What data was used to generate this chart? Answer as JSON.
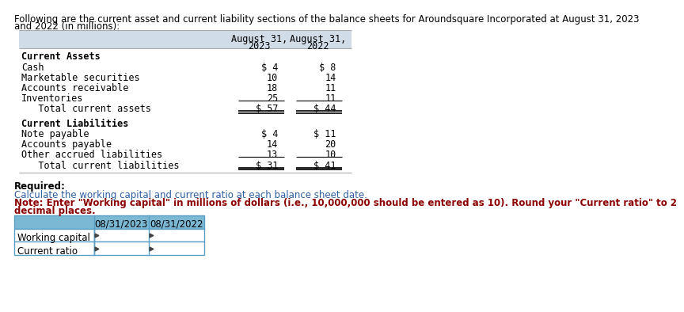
{
  "header_line1": "Following are the current asset and current liability sections of the balance sheets for Aroundsquare Incorporated at August 31, 2023",
  "header_line2": "and 2022 (in millions):",
  "col_headers": [
    "August 31,",
    "2023",
    "August 31,",
    "2022"
  ],
  "sections": [
    {
      "title": "Current Assets",
      "rows": [
        {
          "label": "Cash",
          "val2023": "$ 4",
          "val2022": "$ 8"
        },
        {
          "label": "Marketable securities",
          "val2023": "10",
          "val2022": "14"
        },
        {
          "label": "Accounts receivable",
          "val2023": "18",
          "val2022": "11"
        },
        {
          "label": "Inventories",
          "val2023": "25",
          "val2022": "11"
        }
      ],
      "total_label": "   Total current assets",
      "total2023": "$ 57",
      "total2022": "$ 44"
    },
    {
      "title": "Current Liabilities",
      "rows": [
        {
          "label": "Note payable",
          "val2023": "$ 4",
          "val2022": "$ 11"
        },
        {
          "label": "Accounts payable",
          "val2023": "14",
          "val2022": "20"
        },
        {
          "label": "Other accrued liabilities",
          "val2023": "13",
          "val2022": "10"
        }
      ],
      "total_label": "   Total current liabilities",
      "total2023": "$ 31",
      "total2022": "$ 41"
    }
  ],
  "required_label": "Required:",
  "required_text": "Calculate the working capital and current ratio at each balance sheet date.",
  "note_line1": "Note: Enter \"Working capital\" in millions of dollars (i.e., 10,000,000 should be entered as 10). Round your \"Current ratio\" to 2",
  "note_line2": "decimal places.",
  "answer_col_headers": [
    "08/31/2023",
    "08/31/2022"
  ],
  "answer_rows": [
    "Working capital",
    "Current ratio"
  ],
  "table_header_bg": "#d0dce8",
  "note_color": "#8b0000",
  "required_text_color": "#2e5fa3",
  "answer_header_bg": "#7ab8d4",
  "answer_border_color": "#5b9fc4"
}
